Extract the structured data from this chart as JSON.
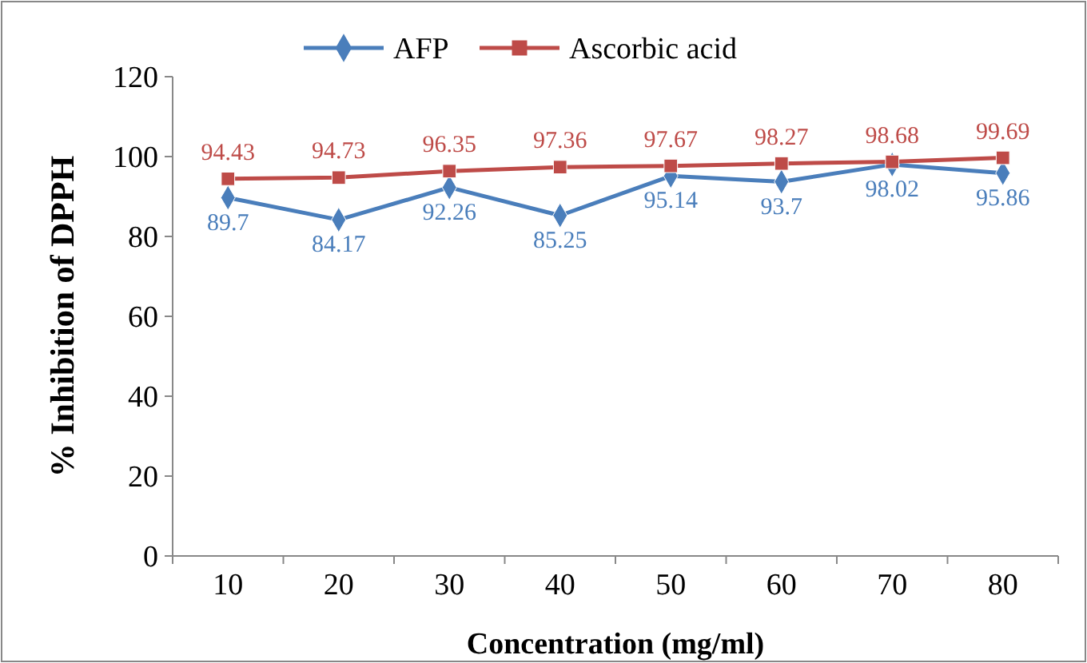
{
  "chart_data": {
    "type": "line",
    "xlabel": "Concentration (mg/ml)",
    "ylabel": "% Inhibition of DPPH",
    "categories": [
      "10",
      "20",
      "30",
      "40",
      "50",
      "60",
      "70",
      "80"
    ],
    "series": [
      {
        "name": "AFP",
        "color": "#4a7ebb",
        "marker": "diamond",
        "values": [
          89.7,
          84.17,
          92.26,
          85.25,
          95.14,
          93.7,
          98.02,
          95.86
        ]
      },
      {
        "name": "Ascorbic acid",
        "color": "#be4b48",
        "marker": "square",
        "values": [
          94.43,
          94.73,
          96.35,
          97.36,
          97.67,
          98.27,
          98.68,
          99.69
        ]
      }
    ],
    "ylim": [
      0,
      120
    ],
    "yticks": [
      0,
      20,
      40,
      60,
      80,
      100,
      120
    ],
    "grid": false,
    "legend": "top",
    "data_labels": true
  }
}
